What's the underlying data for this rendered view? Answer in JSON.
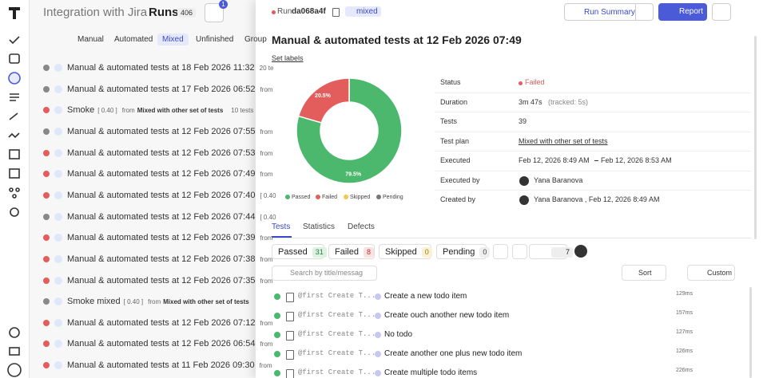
{
  "left": {
    "breadcrumb": "Integration with Jira",
    "section": "Runs",
    "count": "406",
    "filter_badge": "1",
    "tabs": [
      "Manual",
      "Automated",
      "Mixed",
      "Unfinished",
      "Group"
    ],
    "runs": [
      {
        "title": "Manual & automated tests at 18 Feb 2026 11:32",
        "meta": "20 te",
        "status": "partial"
      },
      {
        "title": "Manual & automated tests at 17 Feb 2026 06:52",
        "meta": "from",
        "status": "partial"
      },
      {
        "title": "Smoke",
        "tag": "[ 0.40 ]",
        "meta": "from",
        "source": "Mixed with other set of tests",
        "count": "10 tests",
        "status": "failed"
      },
      {
        "title": "Manual & automated tests at 12 Feb 2026 07:55",
        "meta": "from",
        "status": "partial"
      },
      {
        "title": "Manual & automated tests at 12 Feb 2026 07:53",
        "meta": "from",
        "status": "failed"
      },
      {
        "title": "Manual & automated tests at 12 Feb 2026 07:49",
        "meta": "from",
        "status": "failed"
      },
      {
        "title": "Manual & automated tests at 12 Feb 2026 07:40",
        "meta": "[ 0.40",
        "status": "failed"
      },
      {
        "title": "Manual & automated tests at 12 Feb 2026 07:44",
        "meta": "[ 0.40",
        "status": "partial"
      },
      {
        "title": "Manual & automated tests at 12 Feb 2026 07:39",
        "meta": "from",
        "status": "failed"
      },
      {
        "title": "Manual & automated tests at 12 Feb 2026 07:38",
        "meta": "from",
        "status": "failed"
      },
      {
        "title": "Manual & automated tests at 12 Feb 2026 07:35",
        "meta": "from",
        "status": "failed"
      },
      {
        "title": "Smoke mixed",
        "tag": "[ 0.40 ]",
        "meta": "from",
        "source": "Mixed with other set of tests",
        "status": "partial"
      },
      {
        "title": "Manual & automated tests at 12 Feb 2026 07:12",
        "meta": "from",
        "status": "failed"
      },
      {
        "title": "Manual & automated tests at 12 Feb 2026 06:54",
        "meta": "from",
        "status": "failed"
      },
      {
        "title": "Manual & automated tests at 11 Feb 2026 09:30",
        "meta": "from",
        "status": "failed"
      }
    ]
  },
  "run": {
    "run_label": "Run",
    "run_id": "da068a4f",
    "kind": "mixed",
    "summary_button": "Run Summary",
    "report_button": "Report",
    "title": "Manual & automated tests at 12 Feb 2026 07:49",
    "set_labels": "Set labels",
    "details": [
      {
        "label": "Status",
        "value": "Failed"
      },
      {
        "label": "Duration",
        "value": "3m 47s",
        "note": "(tracked: 5s)"
      },
      {
        "label": "Tests",
        "value": "39"
      },
      {
        "label": "Test plan",
        "value": "Mixed with other set of tests"
      },
      {
        "label": "Executed",
        "value": "Feb 12, 2026 8:49 AM",
        "value_end": "Feb 12, 2026 8:53 AM"
      },
      {
        "label": "Executed by",
        "value": "Yana Baranova"
      },
      {
        "label": "Created by",
        "value": "Yana Baranova , Feb 12, 2026 8:49 AM"
      }
    ],
    "tabs": [
      "Tests",
      "Statistics",
      "Defects"
    ],
    "chips": [
      {
        "name": "Passed",
        "count": "31"
      },
      {
        "name": "Failed",
        "count": "8"
      },
      {
        "name": "Skipped",
        "count": "0"
      },
      {
        "name": "Pending",
        "count": "0"
      }
    ],
    "comments": "7",
    "search_placeholder": "Search by title/messag",
    "sort": "Sort",
    "custom": "Custom",
    "tests": [
      {
        "prefix": "@first Create T...",
        "name": "Create a new todo item",
        "duration": "129ms"
      },
      {
        "prefix": "@first Create T...",
        "name": "Create ouch another new todo item",
        "duration": "157ms"
      },
      {
        "prefix": "@first Create T...",
        "name": "No todo",
        "duration": "127ms"
      },
      {
        "prefix": "@first Create T...",
        "name": "Create another one plus new todo item",
        "duration": "126ms"
      },
      {
        "prefix": "@first Create T...",
        "name": "Create multiple todo items",
        "duration": "226ms"
      }
    ]
  },
  "pie": {
    "type": "pie",
    "values": [
      79.5,
      20.5
    ],
    "value_labels": [
      "79.5%",
      "20.5%"
    ],
    "colors": [
      "#4cb86e",
      "#e35d5d"
    ],
    "legend": [
      {
        "name": "Passed",
        "color": "#4cb86e"
      },
      {
        "name": "Failed",
        "color": "#e35d5d"
      },
      {
        "name": "Skipped",
        "color": "#f2c94c"
      },
      {
        "name": "Pending",
        "color": "#777777"
      }
    ]
  }
}
